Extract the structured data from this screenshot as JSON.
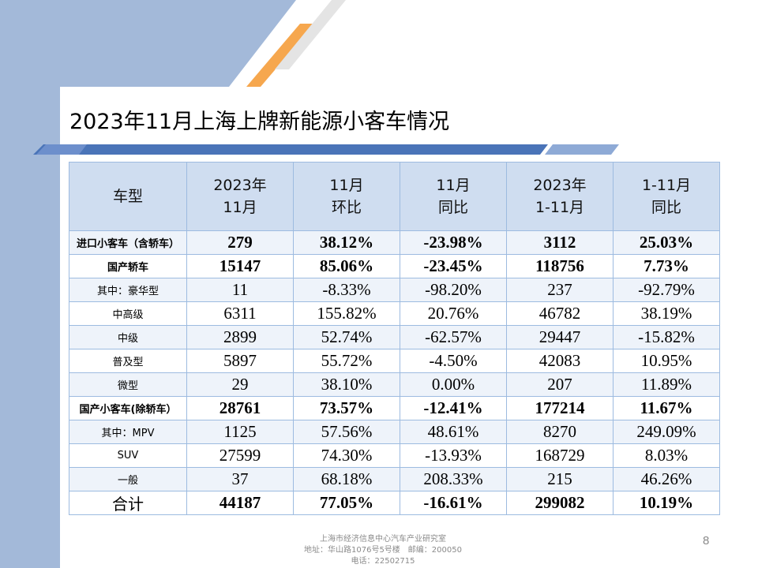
{
  "slide": {
    "title": "2023年11月上海上牌新能源小客车情况",
    "page_number": "8",
    "footer": {
      "line1": "上海市经济信息中心汽车产业研究室",
      "line2": "地址：华山路1076号5号楼　邮编：200050",
      "line3": "电话：22502715"
    }
  },
  "colors": {
    "side_band": "#a3b9d9",
    "orange_stripe": "#f6a74e",
    "title_rule": "#4a74b8",
    "header_fill": "#cfddf0",
    "row_alt_fill": "#eef3fa",
    "grid": "#9dbbe0"
  },
  "table": {
    "headers": [
      {
        "line1": "车型",
        "line2": ""
      },
      {
        "line1": "2023年",
        "line2": "11月"
      },
      {
        "line1": "11月",
        "line2": "环比"
      },
      {
        "line1": "11月",
        "line2": "同比"
      },
      {
        "line1": "2023年",
        "line2": "1-11月"
      },
      {
        "line1": "1-11月",
        "line2": "同比"
      }
    ],
    "rows": [
      {
        "label": "进口小客车（含轿车）",
        "bold": true,
        "cells": [
          "279",
          "38.12%",
          "-23.98%",
          "3112",
          "25.03%"
        ]
      },
      {
        "label": "国产轿车",
        "bold": true,
        "cells": [
          "15147",
          "85.06%",
          "-23.45%",
          "118756",
          "7.73%"
        ]
      },
      {
        "label": "其中：豪华型",
        "bold": false,
        "cells": [
          "11",
          "-8.33%",
          "-98.20%",
          "237",
          "-92.79%"
        ]
      },
      {
        "label": "中高级",
        "bold": false,
        "cells": [
          "6311",
          "155.82%",
          "20.76%",
          "46782",
          "38.19%"
        ]
      },
      {
        "label": "中级",
        "bold": false,
        "cells": [
          "2899",
          "52.74%",
          "-62.57%",
          "29447",
          "-15.82%"
        ]
      },
      {
        "label": "普及型",
        "bold": false,
        "cells": [
          "5897",
          "55.72%",
          "-4.50%",
          "42083",
          "10.95%"
        ]
      },
      {
        "label": "微型",
        "bold": false,
        "cells": [
          "29",
          "38.10%",
          "0.00%",
          "207",
          "11.89%"
        ]
      },
      {
        "label": "国产小客车(除轿车）",
        "bold": true,
        "cells": [
          "28761",
          "73.57%",
          "-12.41%",
          "177214",
          "11.67%"
        ]
      },
      {
        "label": "其中：MPV",
        "bold": false,
        "cells": [
          "1125",
          "57.56%",
          "48.61%",
          "8270",
          "249.09%"
        ]
      },
      {
        "label": "SUV",
        "bold": false,
        "cells": [
          "27599",
          "74.30%",
          "-13.93%",
          "168729",
          "8.03%"
        ]
      },
      {
        "label": "一般",
        "bold": false,
        "cells": [
          "37",
          "68.18%",
          "208.33%",
          "215",
          "46.26%"
        ]
      },
      {
        "label": "合计",
        "bold": true,
        "total": true,
        "cells": [
          "44187",
          "77.05%",
          "-16.61%",
          "299082",
          "10.19%"
        ]
      }
    ]
  }
}
